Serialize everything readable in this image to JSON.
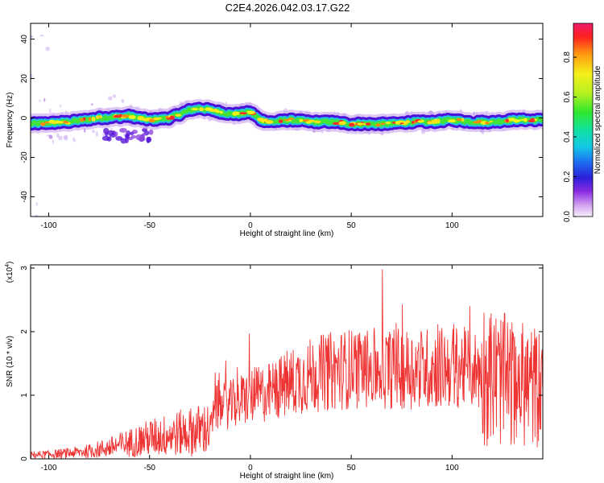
{
  "title": "C2E4.2026.042.03.17.G22",
  "chart_data": [
    {
      "type": "heatmap",
      "xlabel": "Height of straight line (km)",
      "ylabel": "Frequency (Hz)",
      "xlim": [
        -109,
        145
      ],
      "ylim": [
        -50,
        48
      ],
      "xticks": [
        -100,
        -50,
        0,
        50,
        100
      ],
      "yticks": [
        -40,
        -20,
        0,
        20,
        40
      ],
      "grid": false,
      "colorbar": {
        "label": "Normalized spectral amplitude",
        "range": [
          0,
          0.97
        ],
        "ticks": [
          "0.0",
          "0.2",
          "0.4",
          "0.6",
          "0.8"
        ]
      },
      "ridge": {
        "x": [
          -109,
          -90,
          -75,
          -60,
          -50,
          -40,
          -30,
          -25,
          -20,
          -15,
          -10,
          -5,
          0,
          5,
          10,
          20,
          30,
          40,
          50,
          60,
          70,
          80,
          90,
          100,
          110,
          120,
          130,
          145
        ],
        "y": [
          -3,
          -2,
          0,
          1,
          -1,
          0,
          4,
          5,
          4,
          3,
          2,
          2,
          3,
          -1,
          -2,
          -1,
          -2,
          -2,
          -3,
          -3,
          -3,
          -2,
          -2,
          -1,
          -2,
          -2,
          -1,
          -1
        ]
      }
    },
    {
      "type": "line",
      "xlabel": "Height of straight line (km)",
      "ylabel": "SNR (10 * v/v)",
      "yscale_note": "(x10",
      "yscale_exp": "4",
      "xlim": [
        -109,
        145
      ],
      "ylim": [
        0,
        3.05
      ],
      "xticks": [
        -100,
        -50,
        0,
        50,
        100
      ],
      "yticks": [
        0,
        1,
        2,
        3
      ],
      "color": "#ee3333",
      "grid": false,
      "envelope": {
        "x": [
          -109,
          -100,
          -90,
          -80,
          -70,
          -60,
          -50,
          -40,
          -30,
          -20,
          -17,
          -10,
          0,
          10,
          20,
          30,
          40,
          50,
          60,
          70,
          80,
          90,
          100,
          110,
          120,
          130,
          140,
          145
        ],
        "y": [
          0.06,
          0.07,
          0.09,
          0.12,
          0.18,
          0.25,
          0.33,
          0.38,
          0.43,
          0.48,
          0.8,
          0.85,
          0.98,
          1.05,
          1.2,
          1.32,
          1.38,
          1.42,
          1.42,
          1.42,
          1.42,
          1.43,
          1.45,
          1.42,
          1.3,
          1.2,
          1.15,
          1.1
        ]
      }
    }
  ]
}
